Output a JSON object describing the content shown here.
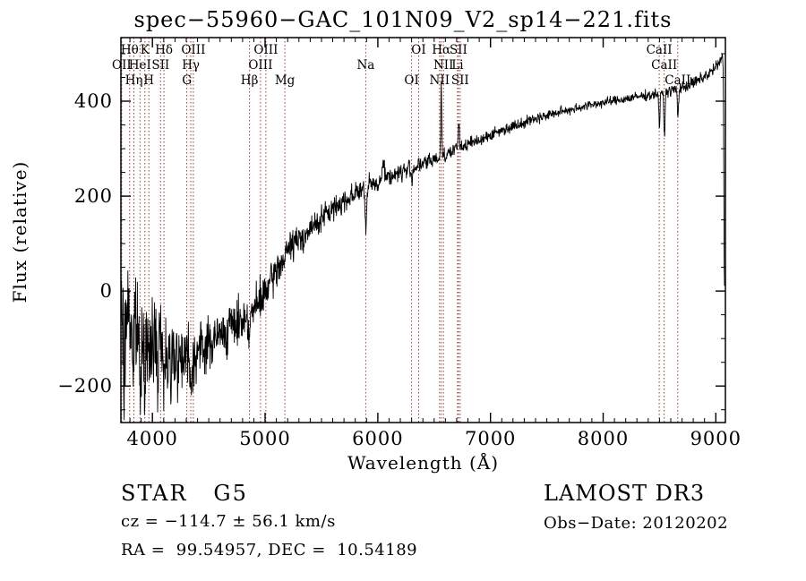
{
  "title": "spec−55960−GAC_101N09_V2_sp14−221.fits",
  "annotations": {
    "class_label": "STAR   G5",
    "survey": "LAMOST DR3",
    "cz": "cz = −114.7 ± 56.1 km/s",
    "obs_date": "Obs−Date: 20120202",
    "radec": "RA =  99.54957, DEC =  10.54189"
  },
  "chart_data": {
    "type": "line",
    "title": "spec−55960−GAC_101N09_V2_sp14−221.fits",
    "xlabel": "Wavelength (Å)",
    "ylabel": "Flux (relative)",
    "xlim": [
      3720,
      9085
    ],
    "ylim": [
      -277,
      534
    ],
    "grid": false,
    "line_color": "#000000",
    "marker_color": "#9d3a30",
    "xticks": [
      {
        "value": 4000,
        "label": "4000"
      },
      {
        "value": 5000,
        "label": "5000"
      },
      {
        "value": 6000,
        "label": "6000"
      },
      {
        "value": 7000,
        "label": "7000"
      },
      {
        "value": 8000,
        "label": "8000"
      },
      {
        "value": 9000,
        "label": "9000"
      }
    ],
    "yticks": [
      {
        "value": 400,
        "label": "400"
      },
      {
        "value": 200,
        "label": "200"
      },
      {
        "value": 0,
        "label": "0"
      },
      {
        "value": -200,
        "label": "−200"
      }
    ],
    "xminor_step": 100,
    "yminor_step": 50,
    "spectral_lines": [
      {
        "label": "OII",
        "wavelength": 3727,
        "row": 2
      },
      {
        "label": "Hθ",
        "wavelength": 3798,
        "row": 1
      },
      {
        "label": "Hη",
        "wavelength": 3835,
        "row": 3
      },
      {
        "label": "HeI",
        "wavelength": 3889,
        "row": 2
      },
      {
        "label": "K",
        "wavelength": 3933,
        "row": 1
      },
      {
        "label": "H",
        "wavelength": 3968,
        "row": 3
      },
      {
        "label": "SII",
        "wavelength": 4072,
        "row": 2
      },
      {
        "label": "Hδ",
        "wavelength": 4102,
        "row": 1
      },
      {
        "label": "G",
        "wavelength": 4305,
        "row": 3
      },
      {
        "label": "Hγ",
        "wavelength": 4340,
        "row": 2
      },
      {
        "label": "OIII",
        "wavelength": 4363,
        "row": 1
      },
      {
        "label": "Hβ",
        "wavelength": 4861,
        "row": 3
      },
      {
        "label": "OIII",
        "wavelength": 4959,
        "row": 2
      },
      {
        "label": "OIII",
        "wavelength": 5007,
        "row": 1
      },
      {
        "label": "Mg",
        "wavelength": 5175,
        "row": 3
      },
      {
        "label": "Na",
        "wavelength": 5893,
        "row": 2
      },
      {
        "label": "OI",
        "wavelength": 6300,
        "row": 3
      },
      {
        "label": "OI",
        "wavelength": 6363,
        "row": 1
      },
      {
        "label": "NII",
        "wavelength": 6548,
        "row": 3
      },
      {
        "label": "Hα",
        "wavelength": 6563,
        "row": 1
      },
      {
        "label": "NII",
        "wavelength": 6583,
        "row": 2
      },
      {
        "label": "Li",
        "wavelength": 6708,
        "row": 2
      },
      {
        "label": "SII",
        "wavelength": 6716,
        "row": 1
      },
      {
        "label": "SII",
        "wavelength": 6731,
        "row": 3
      },
      {
        "label": "CaII",
        "wavelength": 8498,
        "row": 1
      },
      {
        "label": "CaII",
        "wavelength": 8542,
        "row": 2
      },
      {
        "label": "CaII",
        "wavelength": 8662,
        "row": 3
      }
    ],
    "continuum": [
      [
        3722,
        -55
      ],
      [
        3760,
        -70
      ],
      [
        3800,
        -72
      ],
      [
        3850,
        -78
      ],
      [
        3900,
        -88
      ],
      [
        3950,
        -95
      ],
      [
        4000,
        -102
      ],
      [
        4060,
        -112
      ],
      [
        4120,
        -120
      ],
      [
        4200,
        -126
      ],
      [
        4280,
        -131
      ],
      [
        4340,
        -134
      ],
      [
        4400,
        -128
      ],
      [
        4460,
        -118
      ],
      [
        4520,
        -108
      ],
      [
        4580,
        -97
      ],
      [
        4640,
        -86
      ],
      [
        4700,
        -75
      ],
      [
        4760,
        -65
      ],
      [
        4820,
        -56
      ],
      [
        4861,
        -50
      ],
      [
        4900,
        -40
      ],
      [
        4950,
        -22
      ],
      [
        5000,
        -5
      ],
      [
        5060,
        22
      ],
      [
        5120,
        52
      ],
      [
        5183,
        85
      ],
      [
        5250,
        100
      ],
      [
        5320,
        112
      ],
      [
        5400,
        128
      ],
      [
        5500,
        153
      ],
      [
        5600,
        172
      ],
      [
        5700,
        190
      ],
      [
        5800,
        208
      ],
      [
        5893,
        218
      ],
      [
        5950,
        224
      ],
      [
        6050,
        235
      ],
      [
        6150,
        246
      ],
      [
        6250,
        254
      ],
      [
        6350,
        263
      ],
      [
        6450,
        272
      ],
      [
        6563,
        284
      ],
      [
        6650,
        294
      ],
      [
        6750,
        304
      ],
      [
        6850,
        314
      ],
      [
        6950,
        324
      ],
      [
        7050,
        334
      ],
      [
        7150,
        343
      ],
      [
        7250,
        352
      ],
      [
        7350,
        360
      ],
      [
        7450,
        367
      ],
      [
        7550,
        373
      ],
      [
        7650,
        379
      ],
      [
        7750,
        385
      ],
      [
        7850,
        390
      ],
      [
        7950,
        395
      ],
      [
        8050,
        399
      ],
      [
        8150,
        403
      ],
      [
        8250,
        407
      ],
      [
        8350,
        411
      ],
      [
        8450,
        414
      ],
      [
        8550,
        419
      ],
      [
        8650,
        425
      ],
      [
        8750,
        433
      ],
      [
        8850,
        444
      ],
      [
        8950,
        460
      ],
      [
        9010,
        474
      ],
      [
        9045,
        486
      ],
      [
        9060,
        493
      ],
      [
        9066,
        470
      ],
      [
        9070,
        300
      ],
      [
        9074,
        60
      ],
      [
        9077,
        8
      ]
    ],
    "noise_amp": [
      [
        3720,
        115
      ],
      [
        3850,
        105
      ],
      [
        3950,
        95
      ],
      [
        4050,
        85
      ],
      [
        4200,
        75
      ],
      [
        4350,
        65
      ],
      [
        4500,
        55
      ],
      [
        4700,
        48
      ],
      [
        4900,
        42
      ],
      [
        5100,
        36
      ],
      [
        5300,
        30
      ],
      [
        5600,
        26
      ],
      [
        5900,
        22
      ],
      [
        6200,
        20
      ],
      [
        6500,
        17
      ],
      [
        6800,
        14
      ],
      [
        7100,
        12
      ],
      [
        7400,
        11
      ],
      [
        7800,
        10
      ],
      [
        8200,
        10
      ],
      [
        8500,
        11
      ],
      [
        8800,
        13
      ],
      [
        9000,
        14
      ],
      [
        9085,
        12
      ]
    ],
    "features": [
      {
        "c": 3748,
        "w": 5,
        "d": -150
      },
      {
        "c": 3783,
        "w": 4,
        "d": 110
      },
      {
        "c": 3830,
        "w": 4,
        "d": -120
      },
      {
        "c": 3892,
        "w": 5,
        "d": -170
      },
      {
        "c": 3935,
        "w": 4,
        "d": -100
      },
      {
        "c": 3972,
        "w": 5,
        "d": -130
      },
      {
        "c": 4048,
        "w": 4,
        "d": -100
      },
      {
        "c": 4104,
        "w": 4,
        "d": -95
      },
      {
        "c": 4163,
        "w": 5,
        "d": -115
      },
      {
        "c": 4228,
        "w": 4,
        "d": -70
      },
      {
        "c": 4347,
        "w": 5,
        "d": -80
      },
      {
        "c": 4861,
        "w": 6,
        "d": -45
      },
      {
        "c": 5172,
        "w": 9,
        "d": -22
      },
      {
        "c": 5893,
        "w": 7,
        "d": -92
      },
      {
        "c": 6050,
        "w": 8,
        "d": 48
      },
      {
        "c": 6302,
        "w": 5,
        "d": -25
      },
      {
        "c": 6563,
        "w": 4,
        "d": 162
      },
      {
        "c": 6718,
        "w": 5,
        "d": 58
      },
      {
        "c": 8500,
        "w": 5,
        "d": -72
      },
      {
        "c": 8544,
        "w": 5,
        "d": -95
      },
      {
        "c": 8664,
        "w": 5,
        "d": -62
      }
    ],
    "seed": 7,
    "sample_step": 3.0
  }
}
